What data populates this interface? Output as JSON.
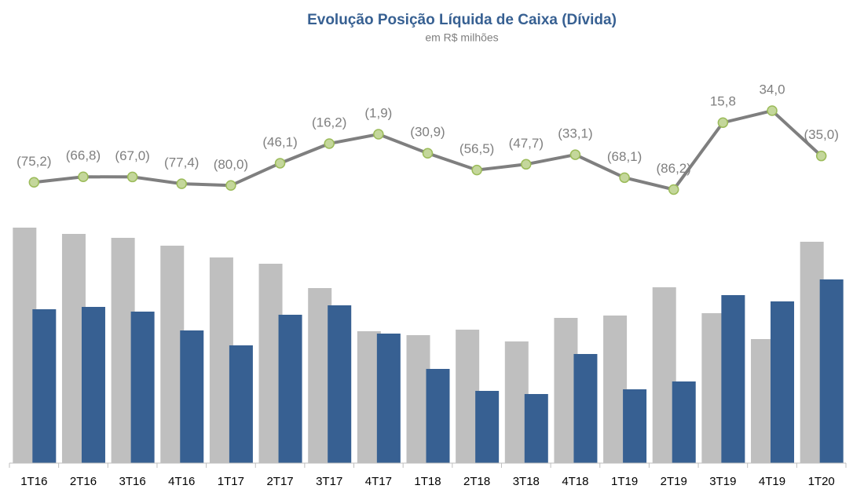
{
  "chart_data": {
    "type": "bar_line",
    "title": "Evolução Posição Líquida de Caixa (Dívida)",
    "subtitle": "em R$ milhões",
    "categories": [
      "1T16",
      "2T16",
      "3T16",
      "4T16",
      "1T17",
      "2T17",
      "3T17",
      "4T17",
      "1T18",
      "2T18",
      "3T18",
      "4T18",
      "1T19",
      "2T19",
      "3T19",
      "4T19",
      "1T20"
    ],
    "ylim": [
      0,
      320
    ],
    "y2lim": [
      -100,
      40
    ],
    "series": [
      {
        "type": "bar",
        "color": "#bfbfbf",
        "values": [
          300,
          292,
          287,
          277,
          262,
          254,
          223,
          168,
          163,
          170,
          155,
          185,
          188,
          224,
          191,
          158,
          282
        ]
      },
      {
        "type": "bar",
        "color": "#376092",
        "values": [
          196,
          199,
          193,
          169,
          150,
          189,
          201,
          165,
          120,
          92,
          88,
          139,
          94,
          104,
          214,
          206,
          234
        ]
      },
      {
        "type": "line",
        "axis": "y2",
        "color": "#7f7f7f",
        "marker_color": "#c4d79b",
        "values": [
          -75.2,
          -66.8,
          -67.0,
          -77.4,
          -80.0,
          -46.1,
          -16.2,
          -1.9,
          -30.9,
          -56.5,
          -47.7,
          -33.1,
          -68.1,
          -86.2,
          15.8,
          34.0,
          -35.0
        ],
        "value_labels": [
          "(75,2)",
          "(66,8)",
          "(67,0)",
          "(77,4)",
          "(80,0)",
          "(46,1)",
          "(16,2)",
          "(1,9)",
          "(30,9)",
          "(56,5)",
          "(47,7)",
          "(33,1)",
          "(68,1)",
          "(86,2)",
          "15,8",
          "34,0",
          "(35,0)"
        ]
      }
    ]
  }
}
